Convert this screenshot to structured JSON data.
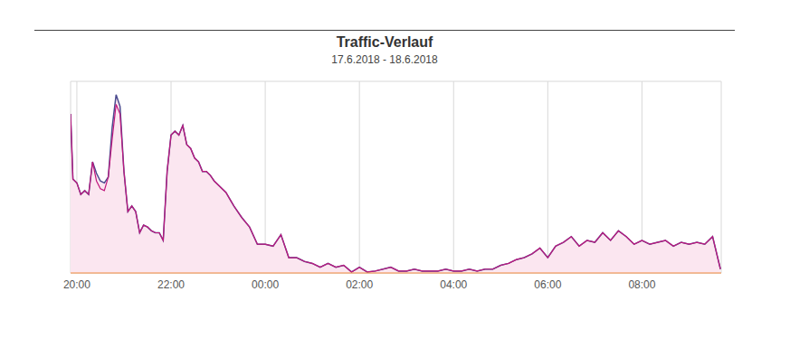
{
  "chart_data": {
    "type": "area",
    "title": "Traffic-Verlauf",
    "subtitle": "17.6.2018 - 18.6.2018",
    "x": [
      1192,
      1195,
      1200,
      1205,
      1210,
      1215,
      1220,
      1225,
      1230,
      1235,
      1240,
      1245,
      1250,
      1255,
      1260,
      1265,
      1270,
      1275,
      1280,
      1285,
      1290,
      1295,
      1300,
      1305,
      1310,
      1315,
      1320,
      1325,
      1330,
      1335,
      1340,
      1345,
      1350,
      1355,
      1360,
      1365,
      1370,
      1375,
      1380,
      1390,
      1400,
      1410,
      1420,
      1430,
      1440,
      1450,
      1460,
      1470,
      1480,
      1490,
      1500,
      1510,
      1520,
      1530,
      1540,
      1550,
      1560,
      1570,
      1580,
      1590,
      1600,
      1610,
      1620,
      1630,
      1640,
      1650,
      1660,
      1670,
      1680,
      1690,
      1700,
      1710,
      1720,
      1730,
      1740,
      1750,
      1760,
      1770,
      1780,
      1790,
      1800,
      1810,
      1820,
      1830,
      1840,
      1850,
      1860,
      1870,
      1880,
      1890,
      1900,
      1910,
      1920,
      1930,
      1940,
      1950,
      1960,
      1970,
      1980,
      1990,
      2000,
      2010,
      2020
    ],
    "series": [
      {
        "color": "#4b4b8f",
        "values": [
          83,
          49,
          47,
          41,
          43,
          41,
          58,
          52,
          48,
          47,
          50,
          76,
          93,
          87,
          53,
          32,
          35,
          32,
          21,
          25,
          24,
          22,
          21,
          21,
          17,
          53,
          72,
          74,
          72,
          77,
          67,
          65,
          60,
          58,
          53,
          53,
          51,
          48,
          46,
          42,
          35,
          29,
          24,
          15,
          15,
          14,
          20,
          8,
          8,
          6,
          5,
          3,
          5,
          3,
          4,
          0.5,
          3,
          0.5,
          1,
          2,
          3,
          1,
          1,
          2,
          1,
          1,
          1,
          2,
          1,
          1,
          2,
          1,
          2,
          2,
          4,
          5,
          7,
          8,
          10,
          13,
          8,
          14,
          16,
          19,
          14,
          17,
          16,
          21,
          17,
          22,
          19,
          15,
          17,
          15,
          16,
          17,
          14,
          16,
          15,
          16,
          15,
          19,
          2
        ]
      },
      {
        "color": "#c0187e",
        "type": "line",
        "values": [
          83,
          49,
          47,
          41,
          43,
          41,
          58,
          48,
          44,
          43,
          50,
          70,
          88,
          83,
          53,
          32,
          35,
          32,
          21,
          25,
          24,
          22,
          21,
          21,
          17,
          53,
          72,
          74,
          72,
          77,
          67,
          65,
          60,
          58,
          53,
          53,
          51,
          48,
          46,
          42,
          35,
          29,
          24,
          15,
          15,
          14,
          20,
          8,
          8,
          6,
          5,
          3,
          5,
          3,
          4,
          0.5,
          3,
          0.5,
          1,
          2,
          3,
          1,
          1,
          2,
          1,
          1,
          1,
          2,
          1,
          1,
          2,
          1,
          2,
          2,
          4,
          5,
          7,
          8,
          10,
          13,
          8,
          14,
          16,
          19,
          14,
          17,
          16,
          21,
          17,
          22,
          19,
          15,
          17,
          15,
          16,
          17,
          14,
          16,
          15,
          16,
          15,
          19,
          2
        ]
      }
    ],
    "xlim": [
      1192,
      2021
    ],
    "xticks": [
      {
        "value": 1200,
        "label": "20:00"
      },
      {
        "value": 1320,
        "label": "22:00"
      },
      {
        "value": 1440,
        "label": "00:00"
      },
      {
        "value": 1560,
        "label": "02:00"
      },
      {
        "value": 1680,
        "label": "04:00"
      },
      {
        "value": 1800,
        "label": "06:00"
      },
      {
        "value": 1920,
        "label": "08:00"
      }
    ],
    "ylim": [
      0,
      100
    ],
    "yticks": [
      0,
      25,
      50,
      75,
      100
    ],
    "grid": true,
    "tick_labels": "x"
  }
}
